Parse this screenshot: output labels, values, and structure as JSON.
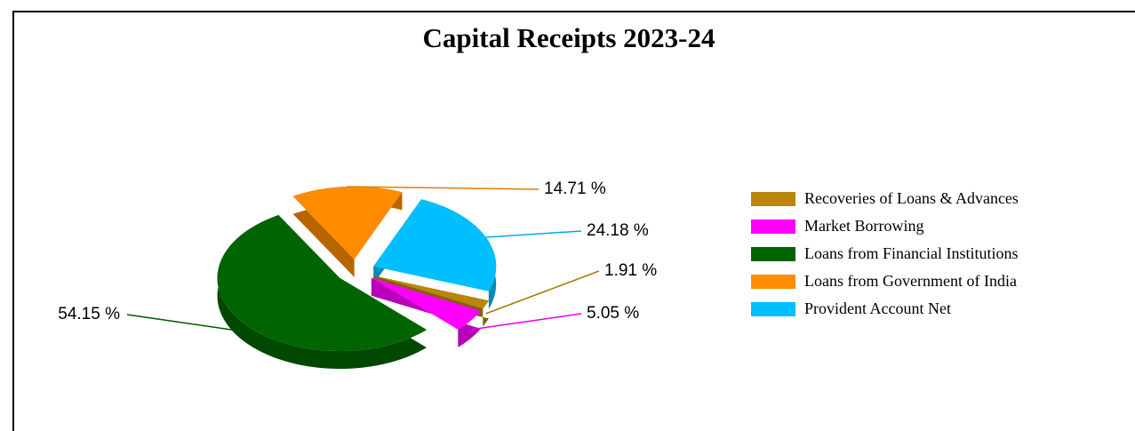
{
  "chart_data": {
    "type": "pie",
    "title": "Capital Receipts 2023-24",
    "categories": [
      "Recoveries of Loans & Advances",
      "Market Borrowing",
      "Loans from Financial Institutions",
      "Loans from Government of India",
      "Provident Account Net"
    ],
    "values": [
      1.91,
      5.05,
      54.15,
      14.71,
      24.18
    ],
    "value_labels": [
      "1.91 %",
      "5.05 %",
      "54.15 %",
      "14.71 %",
      "24.18 %"
    ],
    "colors": [
      "#b8860b",
      "#ff00ff",
      "#006400",
      "#ff8c00",
      "#00bfff"
    ],
    "legend": "right"
  }
}
